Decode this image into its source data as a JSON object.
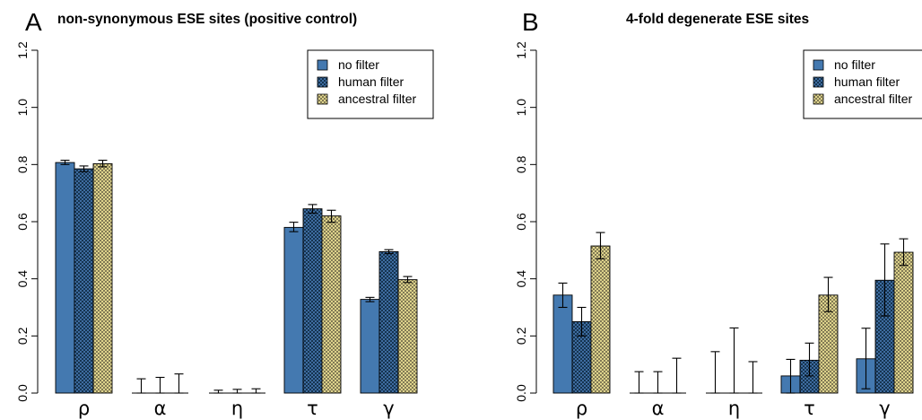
{
  "chart_data": [
    {
      "type": "bar",
      "panel_label": "A",
      "title": "non-synonymous ESE sites (positive control)",
      "categories": [
        "ρ",
        "α",
        "η",
        "τ",
        "γ"
      ],
      "ylim": [
        0,
        1.2
      ],
      "yticks": [
        "0.0",
        "0.2",
        "0.4",
        "0.6",
        "0.8",
        "1.0",
        "1.2"
      ],
      "legend_position": "top-right",
      "series": [
        {
          "name": "no filter",
          "values": [
            0.807,
            0.0,
            0.0,
            0.58,
            0.328
          ],
          "error": [
            [
              0.8,
              0.815
            ],
            [
              0.0,
              0.05
            ],
            [
              0.0,
              0.01
            ],
            [
              0.565,
              0.598
            ],
            [
              0.32,
              0.335
            ]
          ]
        },
        {
          "name": "human filter",
          "values": [
            0.785,
            0.0,
            0.0,
            0.645,
            0.495
          ],
          "error": [
            [
              0.775,
              0.795
            ],
            [
              0.0,
              0.055
            ],
            [
              0.0,
              0.013
            ],
            [
              0.63,
              0.66
            ],
            [
              0.488,
              0.502
            ]
          ]
        },
        {
          "name": "ancestral filter",
          "values": [
            0.803,
            0.0,
            0.0,
            0.62,
            0.397
          ],
          "error": [
            [
              0.792,
              0.815
            ],
            [
              0.0,
              0.067
            ],
            [
              0.0,
              0.015
            ],
            [
              0.598,
              0.64
            ],
            [
              0.387,
              0.408
            ]
          ]
        }
      ]
    },
    {
      "type": "bar",
      "panel_label": "B",
      "title": "4-fold degenerate ESE sites",
      "categories": [
        "ρ",
        "α",
        "η",
        "τ",
        "γ"
      ],
      "ylim": [
        0,
        1.2
      ],
      "yticks": [
        "0.0",
        "0.2",
        "0.4",
        "0.6",
        "0.8",
        "1.0",
        "1.2"
      ],
      "legend_position": "top-right",
      "series": [
        {
          "name": "no filter",
          "values": [
            0.343,
            0.0,
            0.0,
            0.06,
            0.12
          ],
          "error": [
            [
              0.3,
              0.385
            ],
            [
              0.0,
              0.075
            ],
            [
              0.0,
              0.145
            ],
            [
              0.0,
              0.118
            ],
            [
              0.015,
              0.227
            ]
          ]
        },
        {
          "name": "human filter",
          "values": [
            0.25,
            0.0,
            0.0,
            0.115,
            0.395
          ],
          "error": [
            [
              0.2,
              0.3
            ],
            [
              0.0,
              0.075
            ],
            [
              0.0,
              0.228
            ],
            [
              0.06,
              0.175
            ],
            [
              0.27,
              0.522
            ]
          ]
        },
        {
          "name": "ancestral filter",
          "values": [
            0.515,
            0.0,
            0.0,
            0.343,
            0.493
          ],
          "error": [
            [
              0.47,
              0.562
            ],
            [
              0.0,
              0.122
            ],
            [
              0.0,
              0.11
            ],
            [
              0.285,
              0.405
            ],
            [
              0.447,
              0.54
            ]
          ]
        }
      ]
    }
  ],
  "colors": {
    "no_filter": "#4479b0",
    "human_filter_fill": "#4a7db8",
    "human_filter_hatch": "#0d2840",
    "ancestral_filter_fill": "#f5ea9a",
    "ancestral_filter_hatch": "#6b6447"
  }
}
